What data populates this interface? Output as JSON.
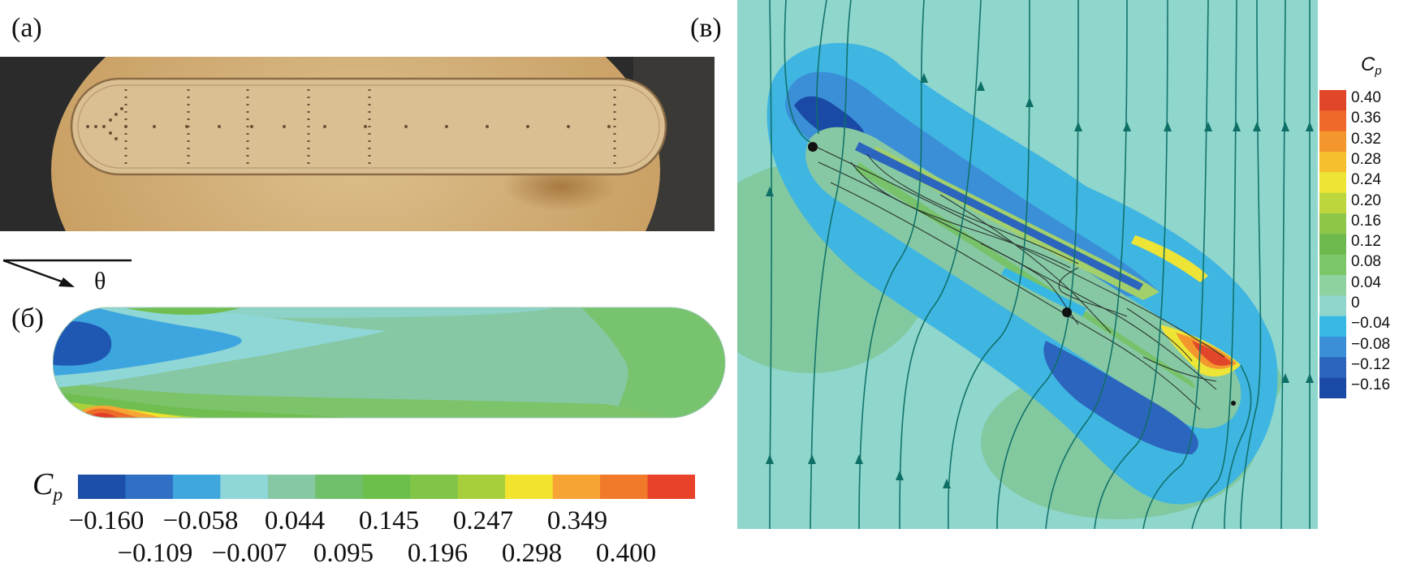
{
  "panels": {
    "a": {
      "label": "(а)"
    },
    "b": {
      "label": "(б)",
      "angle_label": "θ"
    },
    "c": {
      "label": "(в)"
    }
  },
  "colorbar_b": {
    "symbol": "C",
    "subscript": "p",
    "colors": [
      "#1b4fa8",
      "#2f6fc4",
      "#3fa6de",
      "#8fd6d8",
      "#86c8a4",
      "#70bf6a",
      "#6cbf4b",
      "#80c548",
      "#a7cf3c",
      "#f2e42d",
      "#f6a534",
      "#f07a2a",
      "#e8422a"
    ],
    "ticks_top": [
      "−0.160",
      "−0.058",
      "0.044",
      "0.145",
      "0.247",
      "0.349"
    ],
    "ticks_bottom": [
      "−0.109",
      "−0.007",
      "0.095",
      "0.196",
      "0.298",
      "0.400"
    ]
  },
  "colorbar_c": {
    "symbol": "C",
    "subscript": "p",
    "levels": [
      "0.40",
      "0.36",
      "0.32",
      "0.28",
      "0.24",
      "0.20",
      "0.16",
      "0.12",
      "0.08",
      "0.04",
      "0",
      "−0.04",
      "−0.08",
      "−0.12",
      "−0.16"
    ],
    "colors": [
      "#e2462a",
      "#ef6a2a",
      "#f4962e",
      "#f4c02e",
      "#ede435",
      "#bcd63c",
      "#8ec64a",
      "#6db94d",
      "#7cc66a",
      "#8ed2a0",
      "#8fd7cc",
      "#37b7e3",
      "#3b8fd6",
      "#2c65bd",
      "#1a4aa6"
    ]
  }
}
